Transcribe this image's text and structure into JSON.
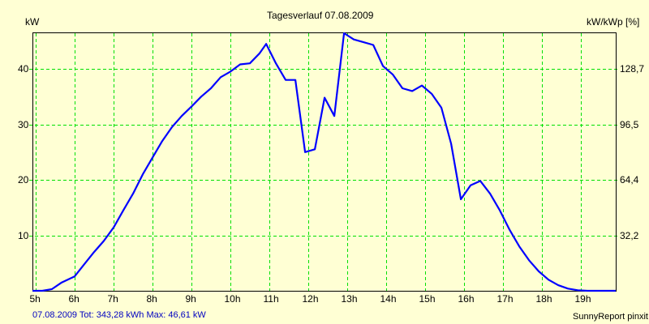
{
  "header": {
    "title": "Tagesverlauf 07.08.2009",
    "left_unit": "kW",
    "right_unit": "kW/kWp [%]"
  },
  "footer": {
    "summary": "07.08.2009 Tot: 343,28 kWh Max: 46,61 kW",
    "credit": "SunnyReport pinxit"
  },
  "colors": {
    "background": "#ffffd4",
    "line": "#0000ff",
    "grid": "#00e000",
    "frame": "#000000",
    "summary_text": "#0000c0"
  },
  "chart_data": {
    "type": "line",
    "title": "Tagesverlauf 07.08.2009",
    "xlabel": "",
    "ylabel": "kW",
    "ylabel_right": "kW/kWp [%]",
    "xlim": [
      4.92,
      19.92
    ],
    "ylim": [
      0,
      46.6
    ],
    "grid": true,
    "legend": null,
    "x_ticks": [
      "5h",
      "6h",
      "7h",
      "8h",
      "9h",
      "10h",
      "11h",
      "12h",
      "13h",
      "14h",
      "15h",
      "16h",
      "17h",
      "18h",
      "19h"
    ],
    "y_ticks_left": [
      "10",
      "20",
      "30",
      "40"
    ],
    "y_ticks_left_values": [
      10,
      20,
      30,
      40
    ],
    "y_ticks_right": [
      "32,2",
      "64,4",
      "96,5",
      "128,7"
    ],
    "series": [
      {
        "name": "kW",
        "x": [
          4.92,
          5.17,
          5.42,
          5.67,
          6.0,
          6.25,
          6.5,
          6.75,
          7.0,
          7.25,
          7.5,
          7.75,
          8.0,
          8.25,
          8.5,
          8.75,
          9.0,
          9.25,
          9.5,
          9.75,
          10.0,
          10.25,
          10.5,
          10.75,
          10.92,
          11.17,
          11.42,
          11.67,
          11.92,
          12.17,
          12.42,
          12.67,
          12.92,
          13.17,
          13.42,
          13.67,
          13.92,
          14.17,
          14.42,
          14.67,
          14.92,
          15.17,
          15.42,
          15.67,
          15.92,
          16.17,
          16.42,
          16.67,
          16.92,
          17.17,
          17.42,
          17.67,
          17.92,
          18.17,
          18.42,
          18.67,
          18.92,
          19.17,
          19.42,
          19.67,
          19.92
        ],
        "y": [
          0,
          0,
          0.3,
          1.5,
          2.6,
          4.8,
          7.0,
          9.0,
          11.4,
          14.5,
          17.5,
          21.0,
          24.0,
          27.0,
          29.5,
          31.5,
          33.2,
          35.0,
          36.5,
          38.5,
          39.5,
          40.8,
          41.0,
          42.8,
          44.5,
          41.0,
          38.0,
          38.0,
          25.0,
          25.5,
          34.8,
          31.5,
          46.6,
          45.3,
          44.8,
          44.3,
          40.5,
          39.0,
          36.5,
          36.0,
          37.0,
          35.5,
          33.0,
          26.5,
          16.5,
          19.0,
          19.8,
          17.5,
          14.5,
          11.0,
          8.0,
          5.5,
          3.5,
          2.0,
          1.0,
          0.4,
          0.1,
          0,
          0,
          0,
          0
        ]
      }
    ]
  }
}
